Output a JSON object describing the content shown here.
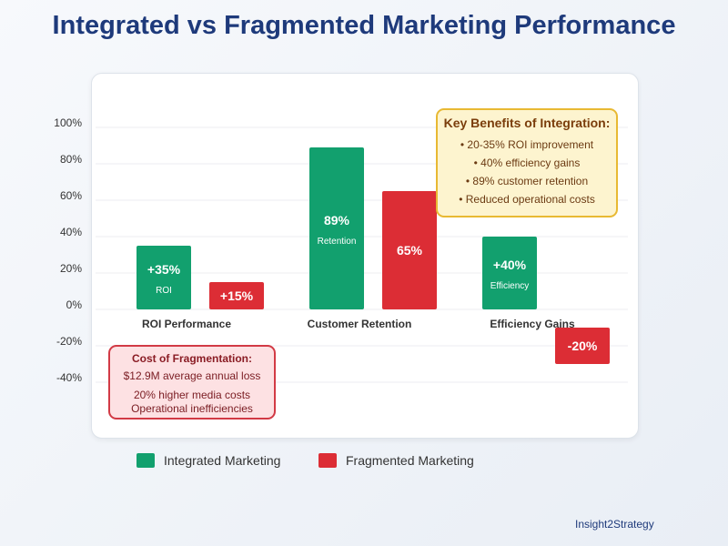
{
  "title": "Integrated vs Fragmented Marketing Performance",
  "chart_data": {
    "type": "bar",
    "categories": [
      "ROI Performance",
      "Customer Retention",
      "Efficiency Gains"
    ],
    "series": [
      {
        "name": "Integrated Marketing",
        "color": "#12a06e",
        "values": [
          35,
          89,
          40
        ],
        "labels": [
          "+35%",
          "89%",
          "+40%"
        ],
        "sublabels": [
          "ROI",
          "Retention",
          "Efficiency"
        ]
      },
      {
        "name": "Fragmented Marketing",
        "color": "#dc2d35",
        "values": [
          15,
          65,
          -20
        ],
        "labels": [
          "+15%",
          "65%",
          "-20%"
        ]
      }
    ],
    "y_ticks": [
      "100%",
      "80%",
      "60%",
      "40%",
      "20%",
      "0%",
      "-20%",
      "-40%"
    ],
    "y_tick_values": [
      100,
      80,
      60,
      40,
      20,
      0,
      -20,
      -40
    ],
    "ylim": [
      -40,
      100
    ],
    "grid": true,
    "legend_position": "bottom-left"
  },
  "benefits": {
    "heading": "Key Benefits of Integration:",
    "items": [
      "• 20-35% ROI improvement",
      "• 40% efficiency gains",
      "• 89% customer retention",
      "• Reduced operational costs"
    ]
  },
  "cost": {
    "heading": "Cost of Fragmentation:",
    "line1": "$12.9M average annual loss",
    "line2": "20% higher media costs",
    "line3": "Operational inefficiencies"
  },
  "brand": "Insight2Strategy"
}
